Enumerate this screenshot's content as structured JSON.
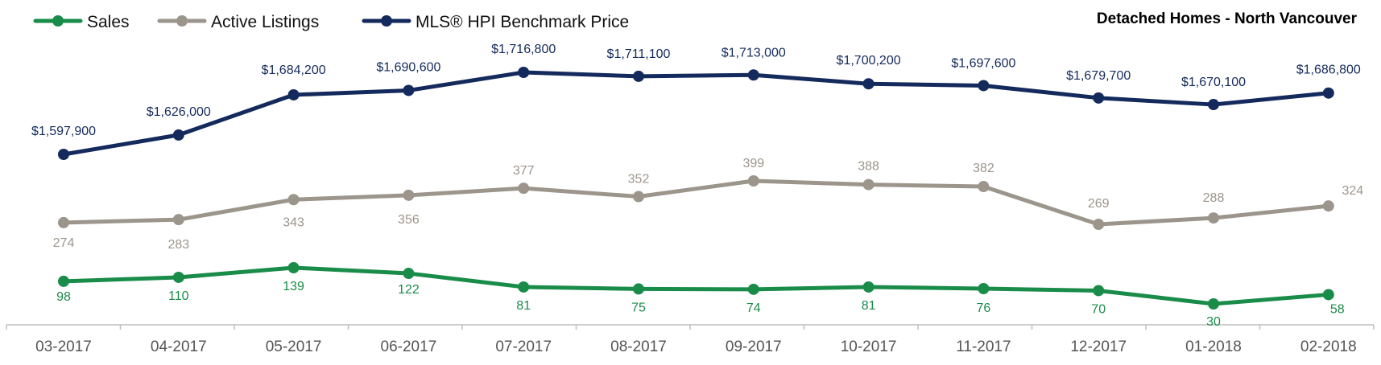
{
  "chart_data": {
    "type": "line",
    "title": "Detached Homes - North Vancouver",
    "categories": [
      "03-2017",
      "04-2017",
      "05-2017",
      "06-2017",
      "07-2017",
      "08-2017",
      "09-2017",
      "10-2017",
      "11-2017",
      "12-2017",
      "01-2018",
      "02-2018"
    ],
    "series": [
      {
        "name": "Sales",
        "color": "#1a8c4a",
        "values": [
          98,
          110,
          139,
          122,
          81,
          75,
          74,
          81,
          76,
          70,
          30,
          58
        ],
        "labels": [
          "98",
          "110",
          "139",
          "122",
          "81",
          "75",
          "74",
          "81",
          "76",
          "70",
          "30",
          "58"
        ]
      },
      {
        "name": "Active Listings",
        "color": "#9c958c",
        "values": [
          274,
          283,
          343,
          356,
          377,
          352,
          399,
          388,
          382,
          269,
          288,
          324
        ],
        "labels": [
          "274",
          "283",
          "343",
          "356",
          "377",
          "352",
          "399",
          "388",
          "382",
          "269",
          "288",
          "324"
        ]
      },
      {
        "name": "MLS® HPI Benchmark Price",
        "color": "#142a5c",
        "values": [
          1597900,
          1626000,
          1684200,
          1690600,
          1716800,
          1711100,
          1713000,
          1700200,
          1697600,
          1679700,
          1670100,
          1686800
        ],
        "labels": [
          "$1,597,900",
          "$1,626,000",
          "$1,684,200",
          "$1,690,600",
          "$1,716,800",
          "$1,711,100",
          "$1,713,000",
          "$1,700,200",
          "$1,697,600",
          "$1,679,700",
          "$1,670,100",
          "$1,686,800"
        ]
      }
    ],
    "legend_position": "top-left",
    "grid": false
  }
}
